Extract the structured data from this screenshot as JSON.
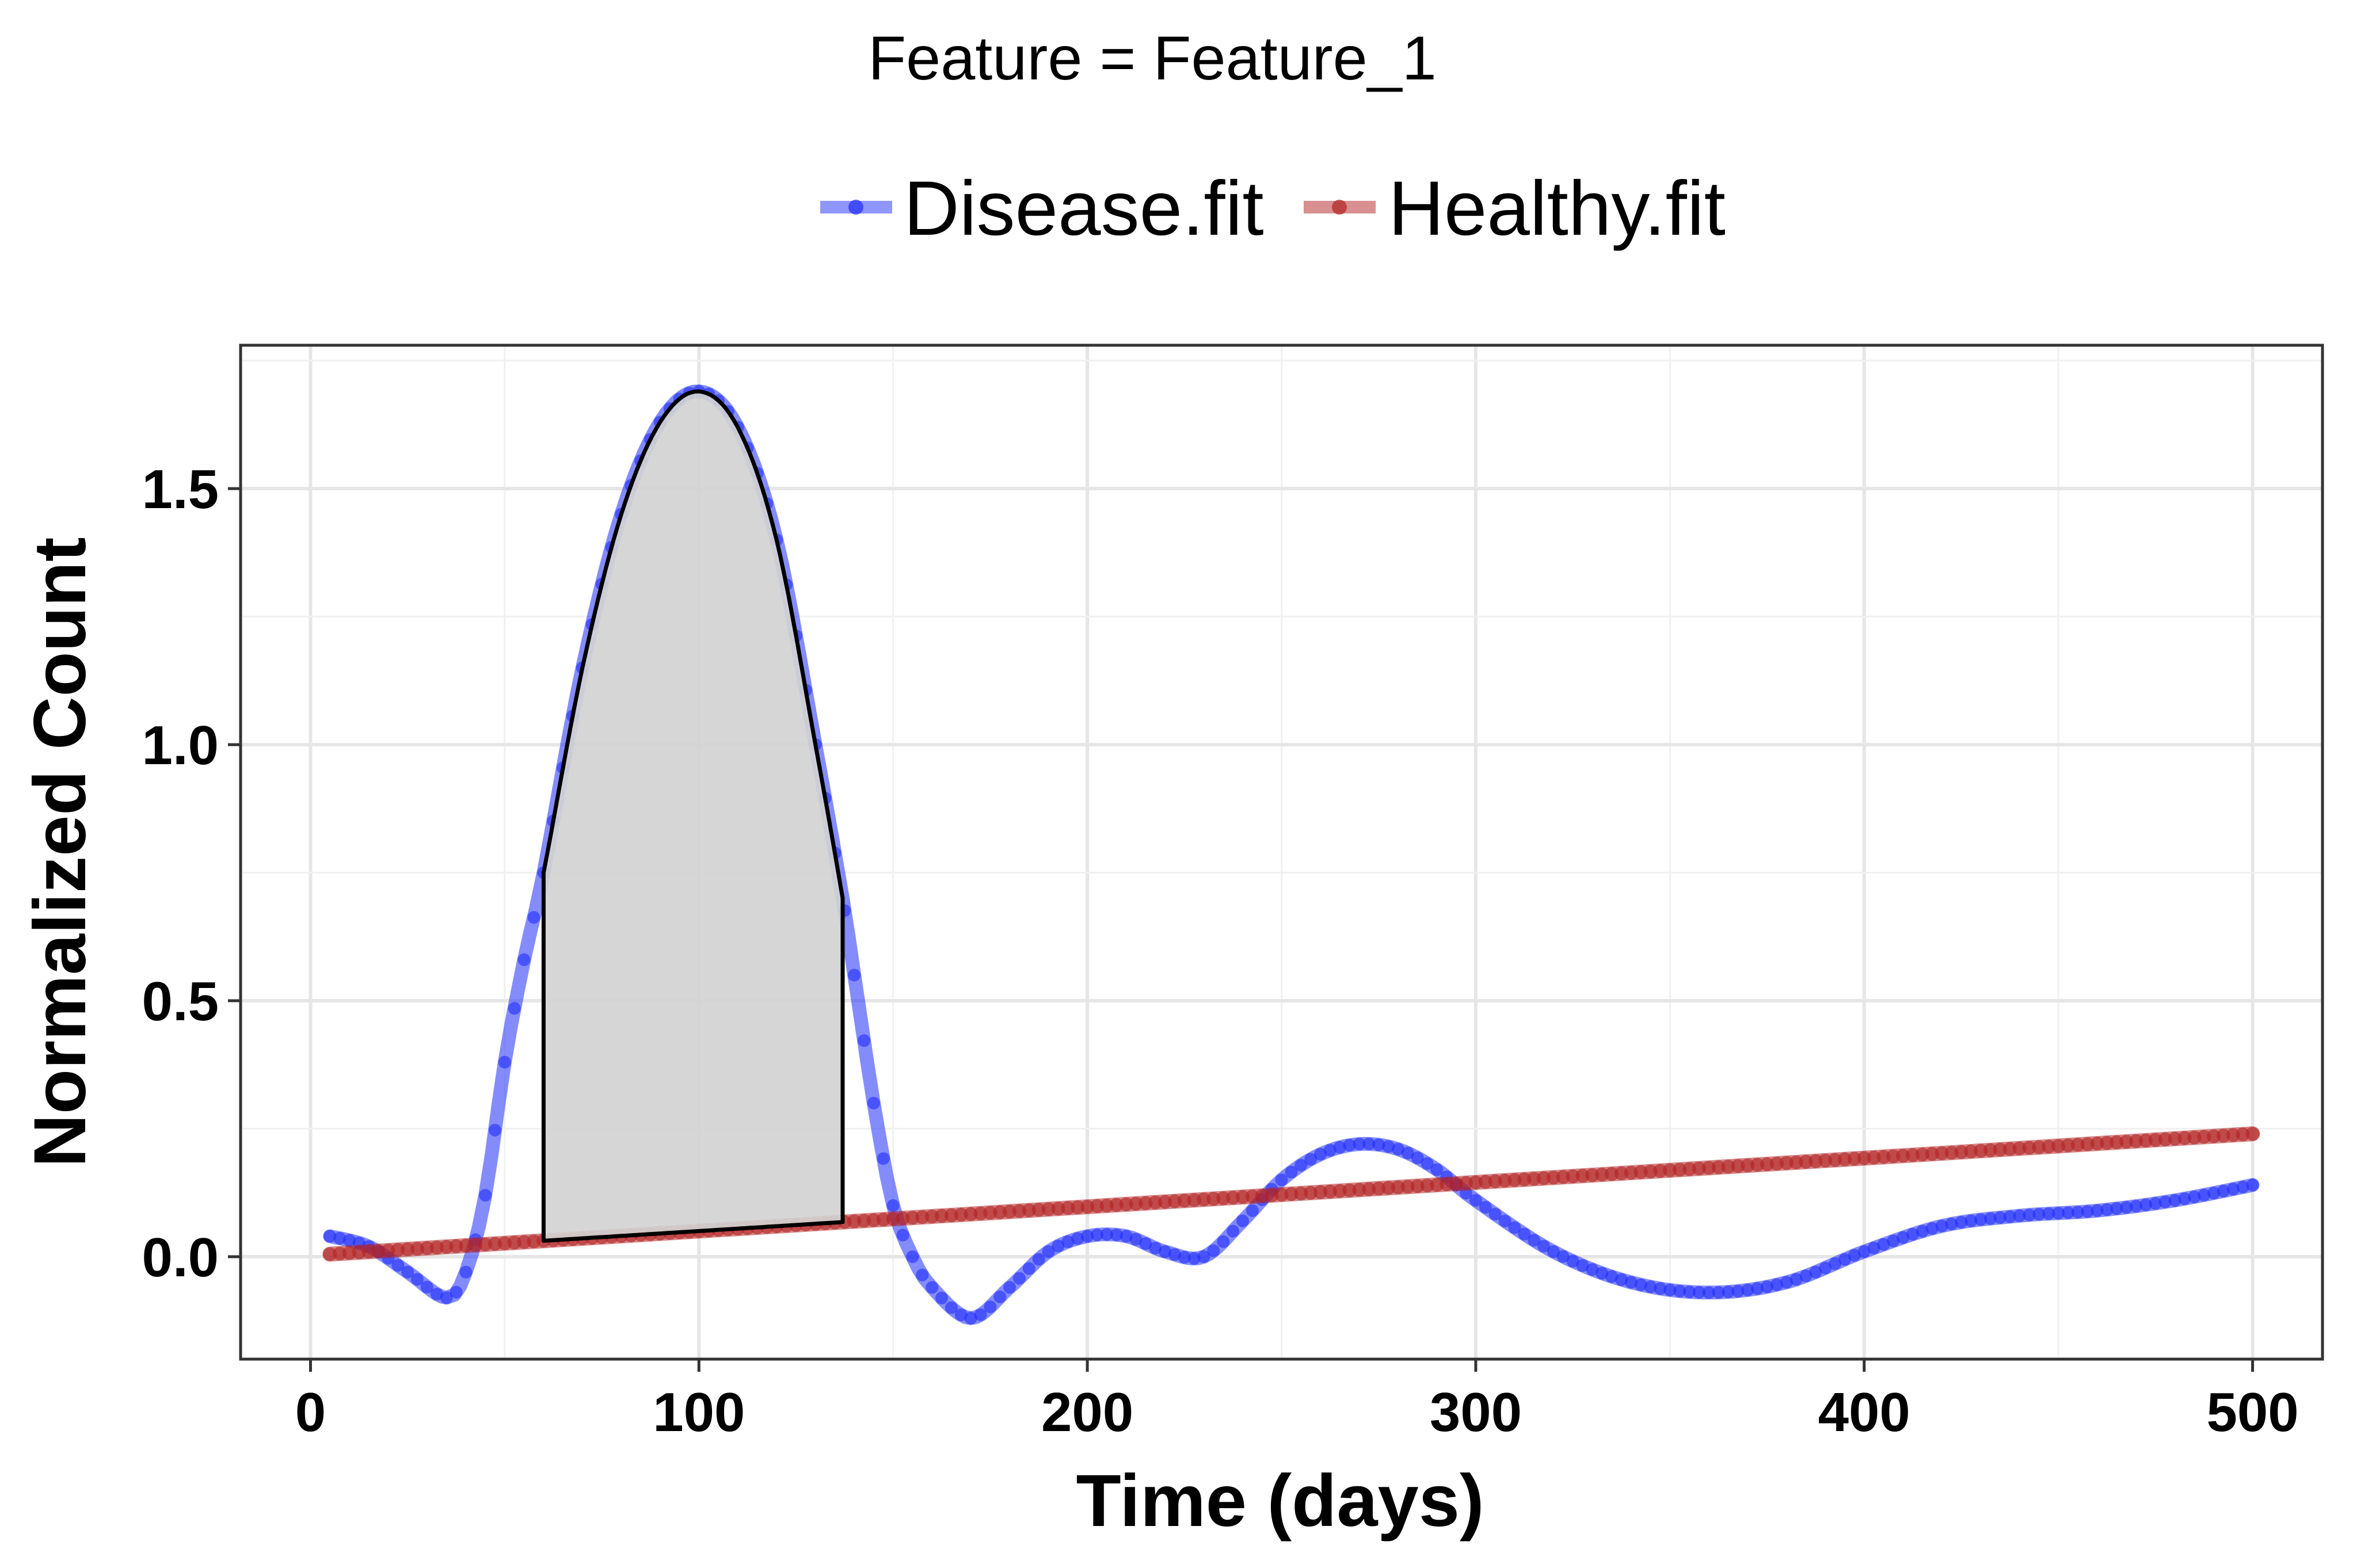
{
  "chart_data": {
    "type": "line",
    "title": "Feature = Feature_1",
    "xlabel": "Time (days)",
    "ylabel": "Normalized Count",
    "xlim": [
      -18,
      518
    ],
    "ylim": [
      -0.2,
      1.78
    ],
    "x_ticks": [
      0,
      100,
      200,
      300,
      400,
      500
    ],
    "x_tick_labels": [
      "0",
      "100",
      "200",
      "300",
      "400",
      "500"
    ],
    "y_ticks": [
      0.0,
      0.5,
      1.0,
      1.5
    ],
    "y_tick_labels": [
      "0.0",
      "0.5",
      "1.0",
      "1.5"
    ],
    "grid": true,
    "legend_position": "top",
    "series": [
      {
        "name": "Disease.fit",
        "color": "#1f2dfa",
        "x": [
          5,
          15,
          25,
          35,
          40,
          45,
          50,
          55,
          60,
          70,
          80,
          90,
          100,
          110,
          120,
          130,
          137,
          140,
          145,
          150,
          155,
          160,
          170,
          180,
          190,
          200,
          210,
          220,
          230,
          240,
          250,
          260,
          270,
          280,
          290,
          300,
          320,
          340,
          360,
          380,
          400,
          420,
          440,
          460,
          480,
          500
        ],
        "y": [
          0.04,
          0.02,
          -0.03,
          -0.08,
          -0.03,
          0.12,
          0.38,
          0.58,
          0.75,
          1.15,
          1.45,
          1.63,
          1.69,
          1.62,
          1.4,
          1.0,
          0.7,
          0.55,
          0.3,
          0.1,
          0.0,
          -0.06,
          -0.12,
          -0.06,
          0.01,
          0.04,
          0.04,
          0.01,
          0.0,
          0.07,
          0.15,
          0.2,
          0.22,
          0.21,
          0.17,
          0.11,
          0.01,
          -0.05,
          -0.07,
          -0.05,
          0.01,
          0.06,
          0.08,
          0.09,
          0.11,
          0.14
        ]
      },
      {
        "name": "Healthy.fit",
        "color": "#b22222",
        "x": [
          5,
          500
        ],
        "y": [
          0.005,
          0.24
        ]
      }
    ],
    "shaded_region": {
      "x_start": 60,
      "x_end": 137,
      "fill": "#d3d3d3",
      "stroke": "#000000"
    }
  }
}
